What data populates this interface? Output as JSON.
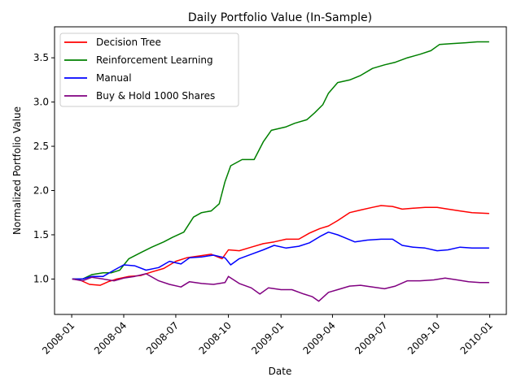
{
  "chart_data": {
    "type": "line",
    "title": "Daily Portfolio Value (In-Sample)",
    "xlabel": "Date",
    "ylabel": "Normalized Portfolio Value",
    "x_ticks": [
      "2008-01",
      "2008-04",
      "2008-07",
      "2008-10",
      "2009-01",
      "2009-04",
      "2009-07",
      "2009-10",
      "2010-01"
    ],
    "y_ticks": [
      "1.0",
      "1.5",
      "2.0",
      "2.5",
      "3.0",
      "3.5"
    ],
    "xlim": [
      "2007-12-02",
      "2010-01-30"
    ],
    "ylim": [
      0.6,
      3.85
    ],
    "grid": false,
    "legend_position": "upper-left",
    "series": [
      {
        "name": "Decision Tree",
        "color": "#ff0000",
        "points": [
          [
            "2008-01-02",
            1.0
          ],
          [
            "2008-01-15",
            0.99
          ],
          [
            "2008-02-01",
            0.94
          ],
          [
            "2008-02-20",
            0.93
          ],
          [
            "2008-03-05",
            0.97
          ],
          [
            "2008-03-20",
            1.0
          ],
          [
            "2008-04-10",
            1.03
          ],
          [
            "2008-05-01",
            1.04
          ],
          [
            "2008-05-20",
            1.08
          ],
          [
            "2008-06-10",
            1.12
          ],
          [
            "2008-07-01",
            1.2
          ],
          [
            "2008-07-20",
            1.24
          ],
          [
            "2008-08-10",
            1.26
          ],
          [
            "2008-09-01",
            1.28
          ],
          [
            "2008-09-20",
            1.23
          ],
          [
            "2008-10-01",
            1.33
          ],
          [
            "2008-10-20",
            1.32
          ],
          [
            "2008-11-10",
            1.36
          ],
          [
            "2008-12-01",
            1.4
          ],
          [
            "2008-12-20",
            1.42
          ],
          [
            "2009-01-10",
            1.45
          ],
          [
            "2009-02-01",
            1.45
          ],
          [
            "2009-02-20",
            1.52
          ],
          [
            "2009-03-10",
            1.57
          ],
          [
            "2009-03-25",
            1.6
          ],
          [
            "2009-04-10",
            1.66
          ],
          [
            "2009-05-01",
            1.75
          ],
          [
            "2009-05-20",
            1.78
          ],
          [
            "2009-06-10",
            1.81
          ],
          [
            "2009-06-25",
            1.83
          ],
          [
            "2009-07-15",
            1.82
          ],
          [
            "2009-08-01",
            1.79
          ],
          [
            "2009-08-20",
            1.8
          ],
          [
            "2009-09-10",
            1.81
          ],
          [
            "2009-10-01",
            1.81
          ],
          [
            "2009-10-20",
            1.79
          ],
          [
            "2009-11-10",
            1.77
          ],
          [
            "2009-12-01",
            1.75
          ],
          [
            "2009-12-31",
            1.74
          ]
        ]
      },
      {
        "name": "Reinforcement Learning",
        "color": "#008000",
        "points": [
          [
            "2008-01-02",
            1.0
          ],
          [
            "2008-01-20",
            1.0
          ],
          [
            "2008-02-05",
            1.05
          ],
          [
            "2008-02-25",
            1.07
          ],
          [
            "2008-03-10",
            1.07
          ],
          [
            "2008-03-25",
            1.1
          ],
          [
            "2008-04-10",
            1.23
          ],
          [
            "2008-05-01",
            1.3
          ],
          [
            "2008-05-20",
            1.36
          ],
          [
            "2008-06-10",
            1.42
          ],
          [
            "2008-06-25",
            1.47
          ],
          [
            "2008-07-15",
            1.53
          ],
          [
            "2008-08-01",
            1.7
          ],
          [
            "2008-08-15",
            1.75
          ],
          [
            "2008-09-01",
            1.77
          ],
          [
            "2008-09-15",
            1.85
          ],
          [
            "2008-09-25",
            2.1
          ],
          [
            "2008-10-05",
            2.28
          ],
          [
            "2008-10-25",
            2.35
          ],
          [
            "2008-11-15",
            2.35
          ],
          [
            "2008-12-01",
            2.55
          ],
          [
            "2008-12-15",
            2.68
          ],
          [
            "2009-01-10",
            2.72
          ],
          [
            "2009-01-25",
            2.76
          ],
          [
            "2009-02-15",
            2.8
          ],
          [
            "2009-03-01",
            2.88
          ],
          [
            "2009-03-15",
            2.97
          ],
          [
            "2009-03-25",
            3.1
          ],
          [
            "2009-04-10",
            3.22
          ],
          [
            "2009-05-01",
            3.25
          ],
          [
            "2009-05-20",
            3.3
          ],
          [
            "2009-06-10",
            3.38
          ],
          [
            "2009-07-01",
            3.42
          ],
          [
            "2009-07-20",
            3.45
          ],
          [
            "2009-08-10",
            3.5
          ],
          [
            "2009-09-01",
            3.54
          ],
          [
            "2009-09-20",
            3.58
          ],
          [
            "2009-10-05",
            3.65
          ],
          [
            "2009-10-25",
            3.66
          ],
          [
            "2009-11-20",
            3.67
          ],
          [
            "2009-12-10",
            3.68
          ],
          [
            "2009-12-31",
            3.68
          ]
        ]
      },
      {
        "name": "Manual",
        "color": "#0000ff",
        "points": [
          [
            "2008-01-02",
            1.0
          ],
          [
            "2008-01-20",
            1.0
          ],
          [
            "2008-02-05",
            1.03
          ],
          [
            "2008-02-25",
            1.03
          ],
          [
            "2008-03-15",
            1.1
          ],
          [
            "2008-04-01",
            1.16
          ],
          [
            "2008-04-20",
            1.15
          ],
          [
            "2008-05-10",
            1.1
          ],
          [
            "2008-06-01",
            1.13
          ],
          [
            "2008-06-20",
            1.2
          ],
          [
            "2008-07-10",
            1.17
          ],
          [
            "2008-07-25",
            1.24
          ],
          [
            "2008-08-15",
            1.25
          ],
          [
            "2008-09-05",
            1.27
          ],
          [
            "2008-09-25",
            1.24
          ],
          [
            "2008-10-05",
            1.16
          ],
          [
            "2008-10-20",
            1.23
          ],
          [
            "2008-11-10",
            1.28
          ],
          [
            "2008-12-01",
            1.33
          ],
          [
            "2008-12-20",
            1.38
          ],
          [
            "2009-01-10",
            1.35
          ],
          [
            "2009-02-01",
            1.37
          ],
          [
            "2009-02-20",
            1.41
          ],
          [
            "2009-03-10",
            1.48
          ],
          [
            "2009-03-25",
            1.53
          ],
          [
            "2009-04-10",
            1.5
          ],
          [
            "2009-04-25",
            1.46
          ],
          [
            "2009-05-10",
            1.42
          ],
          [
            "2009-06-01",
            1.44
          ],
          [
            "2009-06-25",
            1.45
          ],
          [
            "2009-07-15",
            1.45
          ],
          [
            "2009-08-01",
            1.38
          ],
          [
            "2009-08-20",
            1.36
          ],
          [
            "2009-09-10",
            1.35
          ],
          [
            "2009-10-01",
            1.32
          ],
          [
            "2009-10-20",
            1.33
          ],
          [
            "2009-11-10",
            1.36
          ],
          [
            "2009-12-01",
            1.35
          ],
          [
            "2009-12-31",
            1.35
          ]
        ]
      },
      {
        "name": "Buy & Hold 1000 Shares",
        "color": "#800080",
        "points": [
          [
            "2008-01-02",
            1.0
          ],
          [
            "2008-01-20",
            0.98
          ],
          [
            "2008-02-05",
            1.02
          ],
          [
            "2008-02-25",
            1.0
          ],
          [
            "2008-03-15",
            0.98
          ],
          [
            "2008-04-01",
            1.01
          ],
          [
            "2008-04-20",
            1.03
          ],
          [
            "2008-05-10",
            1.06
          ],
          [
            "2008-06-01",
            0.98
          ],
          [
            "2008-06-20",
            0.94
          ],
          [
            "2008-07-10",
            0.91
          ],
          [
            "2008-07-25",
            0.97
          ],
          [
            "2008-08-15",
            0.95
          ],
          [
            "2008-09-05",
            0.94
          ],
          [
            "2008-09-25",
            0.96
          ],
          [
            "2008-10-01",
            1.03
          ],
          [
            "2008-10-20",
            0.95
          ],
          [
            "2008-11-10",
            0.9
          ],
          [
            "2008-11-25",
            0.83
          ],
          [
            "2008-12-10",
            0.9
          ],
          [
            "2009-01-01",
            0.88
          ],
          [
            "2009-01-20",
            0.88
          ],
          [
            "2009-02-10",
            0.83
          ],
          [
            "2009-02-25",
            0.8
          ],
          [
            "2009-03-08",
            0.75
          ],
          [
            "2009-03-25",
            0.85
          ],
          [
            "2009-04-10",
            0.88
          ],
          [
            "2009-05-01",
            0.92
          ],
          [
            "2009-05-20",
            0.93
          ],
          [
            "2009-06-10",
            0.91
          ],
          [
            "2009-07-01",
            0.89
          ],
          [
            "2009-07-20",
            0.92
          ],
          [
            "2009-08-10",
            0.98
          ],
          [
            "2009-09-01",
            0.98
          ],
          [
            "2009-09-25",
            0.99
          ],
          [
            "2009-10-15",
            1.01
          ],
          [
            "2009-11-05",
            0.99
          ],
          [
            "2009-11-25",
            0.97
          ],
          [
            "2009-12-15",
            0.96
          ],
          [
            "2009-12-31",
            0.96
          ]
        ]
      }
    ]
  }
}
